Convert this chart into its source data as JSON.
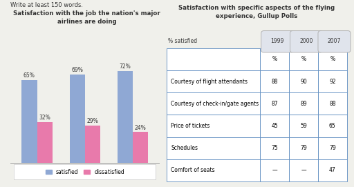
{
  "bar_title_line1": "Satisfaction with the job the nation's major",
  "bar_title_line2": "airlines are doing",
  "years": [
    "1999",
    "2000",
    "2007"
  ],
  "satisfied": [
    65,
    69,
    72
  ],
  "dissatisfied": [
    32,
    29,
    24
  ],
  "satisfied_color": "#8fa8d4",
  "dissatisfied_color": "#e87aab",
  "table_title_line1": "Satisfaction with specific aspects of the flying",
  "table_title_line2": "experience, Gullup Polls",
  "table_rows": [
    [
      "",
      "%",
      "%",
      "%"
    ],
    [
      "Courtesy of flight attendants",
      "88",
      "90",
      "92"
    ],
    [
      "Courtesy of check-in/gate agents",
      "87",
      "89",
      "88"
    ],
    [
      "Price of tickets",
      "45",
      "59",
      "65"
    ],
    [
      "Schedules",
      "75",
      "79",
      "79"
    ],
    [
      "Comfort of seats",
      "—",
      "—",
      "47"
    ]
  ],
  "year_pills": [
    "1999",
    "2000",
    "2007"
  ],
  "pill_bg": "#e0e4ec",
  "pill_edge": "#aaaaaa",
  "table_border_color": "#5a8abf",
  "bg_color": "#f0f0eb",
  "text_color": "#333333",
  "intro_text": "Write at least 150 words.",
  "pct_satisfied_label": "% satisfied"
}
